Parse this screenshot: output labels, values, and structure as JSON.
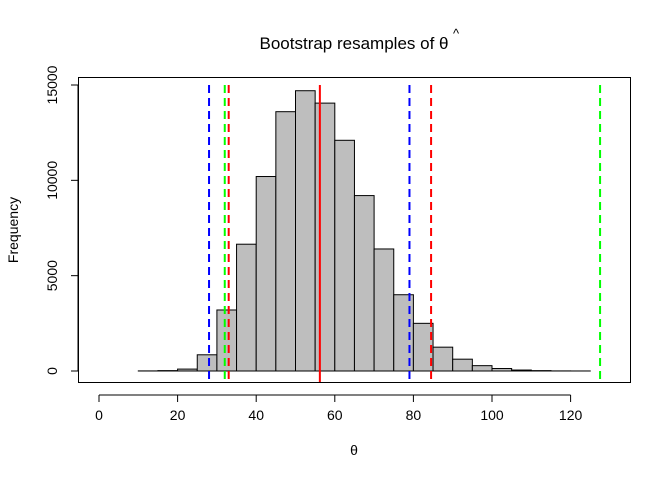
{
  "chart_data": {
    "type": "bar",
    "title": "Bootstrap resamples of θ̂",
    "title_prefix": "Bootstrap resamples of ",
    "title_symbol": "θ",
    "title_accent": "^",
    "xlabel": "θ",
    "ylabel": "Frequency",
    "xlim": [
      0,
      130
    ],
    "ylim": [
      0,
      15000
    ],
    "bin_width": 5,
    "bins": [
      {
        "start": 0,
        "end": 5,
        "value": 0
      },
      {
        "start": 5,
        "end": 10,
        "value": 0
      },
      {
        "start": 10,
        "end": 15,
        "value": 5
      },
      {
        "start": 15,
        "end": 20,
        "value": 20
      },
      {
        "start": 20,
        "end": 25,
        "value": 100
      },
      {
        "start": 25,
        "end": 30,
        "value": 850
      },
      {
        "start": 30,
        "end": 35,
        "value": 3200
      },
      {
        "start": 35,
        "end": 40,
        "value": 6650
      },
      {
        "start": 40,
        "end": 45,
        "value": 10200
      },
      {
        "start": 45,
        "end": 50,
        "value": 13600
      },
      {
        "start": 50,
        "end": 55,
        "value": 14700
      },
      {
        "start": 55,
        "end": 60,
        "value": 14050
      },
      {
        "start": 60,
        "end": 65,
        "value": 12100
      },
      {
        "start": 65,
        "end": 70,
        "value": 9200
      },
      {
        "start": 70,
        "end": 75,
        "value": 6400
      },
      {
        "start": 75,
        "end": 80,
        "value": 4000
      },
      {
        "start": 80,
        "end": 85,
        "value": 2500
      },
      {
        "start": 85,
        "end": 90,
        "value": 1250
      },
      {
        "start": 90,
        "end": 95,
        "value": 620
      },
      {
        "start": 95,
        "end": 100,
        "value": 280
      },
      {
        "start": 100,
        "end": 105,
        "value": 130
      },
      {
        "start": 105,
        "end": 110,
        "value": 50
      },
      {
        "start": 110,
        "end": 115,
        "value": 20
      },
      {
        "start": 115,
        "end": 120,
        "value": 5
      },
      {
        "start": 120,
        "end": 125,
        "value": 2
      },
      {
        "start": 125,
        "end": 130,
        "value": 0
      }
    ],
    "x_ticks": [
      0,
      20,
      40,
      60,
      80,
      100,
      120
    ],
    "y_ticks": [
      0,
      5000,
      10000,
      15000
    ],
    "bar_color": "#bebebe",
    "bar_edge_color": "#000000",
    "vlines": [
      {
        "x": 56.2,
        "color": "#ff0000",
        "style": "solid"
      },
      {
        "x": 28.0,
        "color": "#0000ff",
        "style": "dashed"
      },
      {
        "x": 79.0,
        "color": "#0000ff",
        "style": "dashed"
      },
      {
        "x": 33.0,
        "color": "#ff0000",
        "style": "dashed"
      },
      {
        "x": 84.5,
        "color": "#ff0000",
        "style": "dashed"
      },
      {
        "x": 32.0,
        "color": "#00ff00",
        "style": "dashed"
      },
      {
        "x": 127.5,
        "color": "#00ff00",
        "style": "dashed"
      }
    ],
    "grid": false,
    "legend": "none"
  }
}
